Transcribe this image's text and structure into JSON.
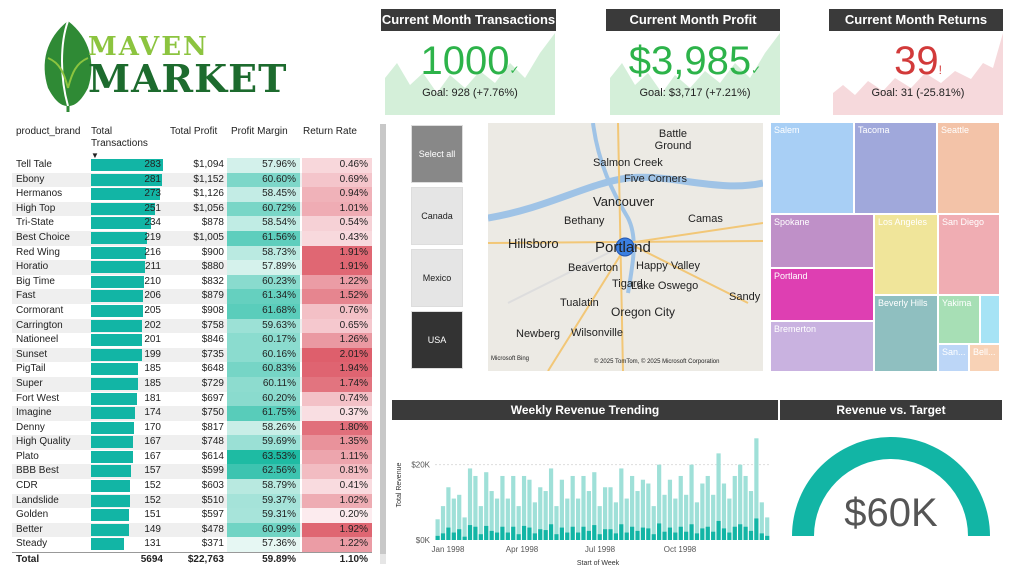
{
  "logo": {
    "word1": "MAVEN",
    "word2": "MARKET"
  },
  "kpis": [
    {
      "title": "Current Month Transactions",
      "value": "1000",
      "goal": "Goal: 928 (+7.76%)",
      "status": "up",
      "color": "#2db34a",
      "bg": "#d4efd9"
    },
    {
      "title": "Current Month Profit",
      "value": "$3,985",
      "goal": "Goal: $3,717 (+7.21%)",
      "status": "up",
      "color": "#2db34a",
      "bg": "#d4efd9"
    },
    {
      "title": "Current Month Returns",
      "value": "39",
      "goal": "Goal: 31 (-25.81%)",
      "status": "down",
      "color": "#d23a3a",
      "bg": "#f6d9dc"
    }
  ],
  "table": {
    "headers": {
      "brand": "product_brand",
      "tx": "Total Transactions",
      "profit": "Total Profit",
      "margin": "Profit Margin",
      "rr": "Return Rate"
    },
    "rows": [
      {
        "brand": "Tell Tale",
        "tx": 283,
        "profit": "$1,094",
        "margin": "57.96%",
        "rr": "0.46%"
      },
      {
        "brand": "Ebony",
        "tx": 281,
        "profit": "$1,152",
        "margin": "60.60%",
        "rr": "0.69%"
      },
      {
        "brand": "Hermanos",
        "tx": 273,
        "profit": "$1,126",
        "margin": "58.45%",
        "rr": "0.94%"
      },
      {
        "brand": "High Top",
        "tx": 251,
        "profit": "$1,056",
        "margin": "60.72%",
        "rr": "1.01%"
      },
      {
        "brand": "Tri-State",
        "tx": 234,
        "profit": "$878",
        "margin": "58.54%",
        "rr": "0.54%"
      },
      {
        "brand": "Best Choice",
        "tx": 219,
        "profit": "$1,005",
        "margin": "61.56%",
        "rr": "0.43%"
      },
      {
        "brand": "Red Wing",
        "tx": 216,
        "profit": "$900",
        "margin": "58.73%",
        "rr": "1.91%"
      },
      {
        "brand": "Horatio",
        "tx": 211,
        "profit": "$880",
        "margin": "57.89%",
        "rr": "1.91%"
      },
      {
        "brand": "Big Time",
        "tx": 210,
        "profit": "$832",
        "margin": "60.23%",
        "rr": "1.22%"
      },
      {
        "brand": "Fast",
        "tx": 206,
        "profit": "$879",
        "margin": "61.34%",
        "rr": "1.52%"
      },
      {
        "brand": "Cormorant",
        "tx": 205,
        "profit": "$908",
        "margin": "61.68%",
        "rr": "0.76%"
      },
      {
        "brand": "Carrington",
        "tx": 202,
        "profit": "$758",
        "margin": "59.63%",
        "rr": "0.65%"
      },
      {
        "brand": "Nationeel",
        "tx": 201,
        "profit": "$846",
        "margin": "60.17%",
        "rr": "1.26%"
      },
      {
        "brand": "Sunset",
        "tx": 199,
        "profit": "$735",
        "margin": "60.16%",
        "rr": "2.01%"
      },
      {
        "brand": "PigTail",
        "tx": 185,
        "profit": "$648",
        "margin": "60.83%",
        "rr": "1.94%"
      },
      {
        "brand": "Super",
        "tx": 185,
        "profit": "$729",
        "margin": "60.11%",
        "rr": "1.74%"
      },
      {
        "brand": "Fort West",
        "tx": 181,
        "profit": "$697",
        "margin": "60.20%",
        "rr": "0.74%"
      },
      {
        "brand": "Imagine",
        "tx": 174,
        "profit": "$750",
        "margin": "61.75%",
        "rr": "0.37%"
      },
      {
        "brand": "Denny",
        "tx": 170,
        "profit": "$817",
        "margin": "58.26%",
        "rr": "1.80%"
      },
      {
        "brand": "High Quality",
        "tx": 167,
        "profit": "$748",
        "margin": "59.69%",
        "rr": "1.35%"
      },
      {
        "brand": "Plato",
        "tx": 167,
        "profit": "$614",
        "margin": "63.53%",
        "rr": "1.11%"
      },
      {
        "brand": "BBB Best",
        "tx": 157,
        "profit": "$599",
        "margin": "62.56%",
        "rr": "0.81%"
      },
      {
        "brand": "CDR",
        "tx": 152,
        "profit": "$603",
        "margin": "58.79%",
        "rr": "0.41%"
      },
      {
        "brand": "Landslide",
        "tx": 152,
        "profit": "$510",
        "margin": "59.37%",
        "rr": "1.02%"
      },
      {
        "brand": "Golden",
        "tx": 151,
        "profit": "$597",
        "margin": "59.31%",
        "rr": "0.20%"
      },
      {
        "brand": "Better",
        "tx": 149,
        "profit": "$478",
        "margin": "60.99%",
        "rr": "1.92%"
      },
      {
        "brand": "Steady",
        "tx": 131,
        "profit": "$371",
        "margin": "57.36%",
        "rr": "1.22%"
      }
    ],
    "total": {
      "label": "Total",
      "tx": "5694",
      "profit": "$22,763",
      "margin": "59.89%",
      "rr": "1.10%"
    }
  },
  "slicer": {
    "items": [
      "Select all",
      "Canada",
      "Mexico",
      "USA"
    ],
    "selected": "USA"
  },
  "map": {
    "labels": [
      "Battle Ground",
      "Salmon Creek",
      "Five Corners",
      "Vancouver",
      "Camas",
      "Hillsboro",
      "Bethany",
      "Portland",
      "Beaverton",
      "Happy Valley",
      "Tigard",
      "Lake Oswego",
      "Tualatin",
      "Oregon City",
      "Sandy",
      "Newberg",
      "Wilsonville"
    ],
    "credit_left": "Microsoft Bing",
    "credit_right": "© 2025 TomTom, © 2025 Microsoft Corporation"
  },
  "treemap": [
    {
      "name": "Salem",
      "color": "#a8cff5"
    },
    {
      "name": "Tacoma",
      "color": "#a0a8db"
    },
    {
      "name": "Seattle",
      "color": "#f3c3a8"
    },
    {
      "name": "Spokane",
      "color": "#bf90c8"
    },
    {
      "name": "Los Angeles",
      "color": "#f0e59a"
    },
    {
      "name": "San Diego",
      "color": "#f0adb3"
    },
    {
      "name": "Portland",
      "color": "#de3fb2"
    },
    {
      "name": "Beverly Hills",
      "color": "#8fbfc0"
    },
    {
      "name": "Yakima",
      "color": "#a7dfb5"
    },
    {
      "name": "Bremerton",
      "color": "#c9b2e0"
    },
    {
      "name": "San...",
      "color": "#bcd6f7"
    },
    {
      "name": "Bell...",
      "color": "#f8d2b6"
    },
    {
      "name": "",
      "color": "#a6e3f5"
    }
  ],
  "weekly": {
    "title": "Weekly Revenue Trending",
    "ylabel": "Total Revenue",
    "xlabel": "Start of Week",
    "yticks": [
      "$20K",
      "$0K"
    ],
    "xticks": [
      "Jan 1998",
      "Apr 1998",
      "Jul 1998",
      "Oct 1998"
    ]
  },
  "chart_data": {
    "type": "bar",
    "title": "Weekly Revenue Trending",
    "xlabel": "Start of Week",
    "ylabel": "Total Revenue",
    "ylim": [
      0,
      30000
    ],
    "x_ticks": [
      "Jan 1998",
      "Apr 1998",
      "Jul 1998",
      "Oct 1998"
    ],
    "series": [
      {
        "values": [
          5500,
          9000,
          14000,
          11000,
          12000,
          6000,
          19000,
          17000,
          9000,
          18000,
          13000,
          11000,
          17000,
          11000,
          17000,
          9000,
          17000,
          16000,
          10000,
          14000,
          13000,
          19000,
          9000,
          16000,
          11000,
          17000,
          11000,
          17000,
          13000,
          18000,
          9000,
          14000,
          14000,
          10000,
          19000,
          11000,
          17000,
          13000,
          16000,
          15000,
          9000,
          20000,
          12000,
          16000,
          11000,
          17000,
          12000,
          20000,
          10000,
          15000,
          17000,
          12000,
          23000,
          15000,
          11000,
          17000,
          20000,
          17000,
          13000,
          27000,
          10000,
          6000
        ]
      },
      {
        "values": [
          500,
          800,
          1500,
          900,
          1300,
          400,
          1800,
          1600,
          700,
          1700,
          1100,
          900,
          1600,
          900,
          1600,
          700,
          1700,
          1500,
          800,
          1300,
          1200,
          1900,
          700,
          1500,
          900,
          1600,
          900,
          1600,
          1100,
          1800,
          700,
          1300,
          1300,
          800,
          1900,
          900,
          1600,
          1100,
          1500,
          1400,
          700,
          2000,
          1000,
          1500,
          900,
          1600,
          1000,
          1900,
          800,
          1400,
          1600,
          1000,
          2300,
          1400,
          900,
          1600,
          1900,
          1600,
          1100,
          2600,
          800,
          500
        ]
      }
    ]
  },
  "gauge": {
    "title": "Revenue vs. Target",
    "value": "$60K",
    "color": "#12b5a5"
  }
}
